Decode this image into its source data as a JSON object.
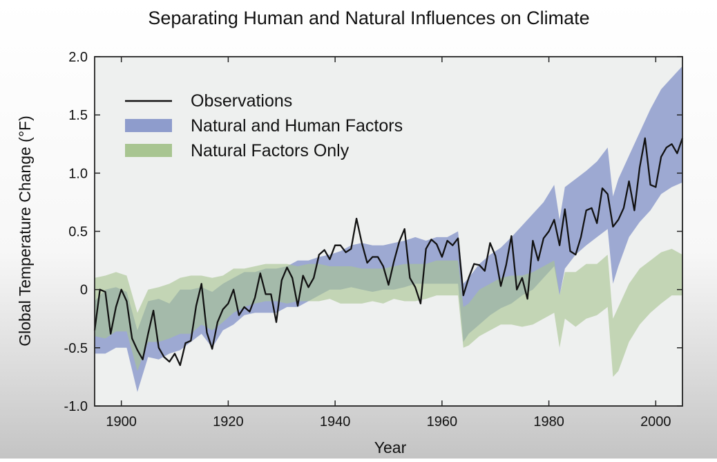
{
  "chart_data": {
    "type": "line",
    "title": "Separating Human and Natural Influences on Climate",
    "xlabel": "Year",
    "ylabel": "Global Temperature Change (°F)",
    "xlim": [
      1895,
      2005
    ],
    "ylim": [
      -1.0,
      2.0
    ],
    "xticks": [
      1900,
      1920,
      1940,
      1960,
      1980,
      2000
    ],
    "yticks": [
      -1.0,
      -0.5,
      0,
      0.5,
      1.0,
      1.5,
      2.0
    ],
    "ytick_labels": [
      "-1.0",
      "-0.5",
      "0",
      "0.5",
      "1.0",
      "1.5",
      "2.0"
    ],
    "legend_position": "top-left",
    "colors": {
      "observations": "#111111",
      "natural_and_human": "#8e9ccc",
      "natural_only": "#a8c591",
      "plot_background": "#eef0ef"
    },
    "series": [
      {
        "name": "Observations",
        "kind": "line",
        "x": [
          1895,
          1896,
          1897,
          1898,
          1899,
          1900,
          1901,
          1902,
          1903,
          1904,
          1905,
          1906,
          1907,
          1908,
          1909,
          1910,
          1911,
          1912,
          1913,
          1914,
          1915,
          1916,
          1917,
          1918,
          1919,
          1920,
          1921,
          1922,
          1923,
          1924,
          1925,
          1926,
          1927,
          1928,
          1929,
          1930,
          1931,
          1932,
          1933,
          1934,
          1935,
          1936,
          1937,
          1938,
          1939,
          1940,
          1941,
          1942,
          1943,
          1944,
          1945,
          1946,
          1947,
          1948,
          1949,
          1950,
          1951,
          1952,
          1953,
          1954,
          1955,
          1956,
          1957,
          1958,
          1959,
          1960,
          1961,
          1962,
          1963,
          1964,
          1965,
          1966,
          1967,
          1968,
          1969,
          1970,
          1971,
          1972,
          1973,
          1974,
          1975,
          1976,
          1977,
          1978,
          1979,
          1980,
          1981,
          1982,
          1983,
          1984,
          1985,
          1986,
          1987,
          1988,
          1989,
          1990,
          1991,
          1992,
          1993,
          1994,
          1995,
          1996,
          1997,
          1998,
          1999,
          2000,
          2001,
          2002,
          2003,
          2004,
          2005
        ],
        "y": [
          -0.35,
          0.0,
          -0.02,
          -0.38,
          -0.15,
          0.0,
          -0.1,
          -0.42,
          -0.52,
          -0.6,
          -0.38,
          -0.18,
          -0.5,
          -0.58,
          -0.62,
          -0.55,
          -0.65,
          -0.46,
          -0.44,
          -0.14,
          0.05,
          -0.37,
          -0.51,
          -0.28,
          -0.17,
          -0.12,
          0.0,
          -0.22,
          -0.15,
          -0.19,
          -0.07,
          0.14,
          -0.04,
          -0.04,
          -0.28,
          0.08,
          0.19,
          0.1,
          -0.14,
          0.12,
          0.02,
          0.1,
          0.3,
          0.34,
          0.26,
          0.38,
          0.38,
          0.32,
          0.35,
          0.61,
          0.4,
          0.23,
          0.28,
          0.28,
          0.2,
          0.04,
          0.24,
          0.41,
          0.52,
          0.1,
          0.02,
          -0.12,
          0.35,
          0.43,
          0.39,
          0.28,
          0.42,
          0.38,
          0.44,
          -0.05,
          0.1,
          0.22,
          0.21,
          0.16,
          0.4,
          0.29,
          0.03,
          0.21,
          0.46,
          0.0,
          0.1,
          -0.08,
          0.42,
          0.25,
          0.44,
          0.5,
          0.6,
          0.38,
          0.69,
          0.33,
          0.3,
          0.45,
          0.68,
          0.7,
          0.57,
          0.87,
          0.82,
          0.54,
          0.6,
          0.7,
          0.93,
          0.68,
          1.05,
          1.3,
          0.9,
          0.88,
          1.14,
          1.22,
          1.25,
          1.17,
          1.3
        ]
      },
      {
        "name": "Natural and Human Factors",
        "kind": "band",
        "x": [
          1895,
          1897,
          1899,
          1901,
          1903,
          1905,
          1907,
          1909,
          1911,
          1913,
          1915,
          1917,
          1919,
          1921,
          1923,
          1925,
          1927,
          1929,
          1931,
          1933,
          1935,
          1937,
          1939,
          1941,
          1943,
          1945,
          1947,
          1949,
          1951,
          1953,
          1955,
          1957,
          1959,
          1961,
          1963,
          1964,
          1965,
          1967,
          1969,
          1971,
          1973,
          1975,
          1977,
          1979,
          1981,
          1982,
          1983,
          1985,
          1987,
          1989,
          1991,
          1992,
          1993,
          1995,
          1997,
          1999,
          2001,
          2003,
          2005
        ],
        "lower": [
          -0.55,
          -0.55,
          -0.5,
          -0.5,
          -0.88,
          -0.58,
          -0.6,
          -0.55,
          -0.52,
          -0.45,
          -0.38,
          -0.5,
          -0.35,
          -0.3,
          -0.22,
          -0.2,
          -0.2,
          -0.2,
          -0.15,
          -0.15,
          -0.1,
          -0.05,
          0.0,
          0.0,
          0.02,
          0.0,
          -0.02,
          0.0,
          0.0,
          0.02,
          0.05,
          0.05,
          0.05,
          0.05,
          0.05,
          -0.45,
          -0.38,
          -0.3,
          -0.22,
          -0.16,
          -0.12,
          -0.05,
          0.0,
          0.1,
          0.2,
          -0.05,
          0.18,
          0.3,
          0.38,
          0.45,
          0.52,
          0.05,
          0.2,
          0.45,
          0.58,
          0.68,
          0.82,
          0.88,
          0.92
        ],
        "upper": [
          -0.1,
          0.0,
          0.02,
          -0.02,
          -0.35,
          -0.1,
          -0.08,
          -0.12,
          0.0,
          0.0,
          0.02,
          -0.02,
          0.05,
          0.1,
          0.15,
          0.15,
          0.18,
          0.18,
          0.2,
          0.25,
          0.25,
          0.28,
          0.3,
          0.33,
          0.38,
          0.4,
          0.38,
          0.38,
          0.4,
          0.42,
          0.45,
          0.42,
          0.45,
          0.45,
          0.5,
          0.05,
          0.1,
          0.22,
          0.3,
          0.36,
          0.45,
          0.55,
          0.65,
          0.75,
          0.9,
          0.6,
          0.88,
          0.95,
          1.02,
          1.1,
          1.22,
          0.8,
          0.95,
          1.15,
          1.35,
          1.55,
          1.72,
          1.82,
          1.92
        ]
      },
      {
        "name": "Natural Factors Only",
        "kind": "band",
        "x": [
          1895,
          1897,
          1899,
          1901,
          1903,
          1905,
          1907,
          1909,
          1911,
          1913,
          1915,
          1917,
          1919,
          1921,
          1923,
          1925,
          1927,
          1929,
          1931,
          1933,
          1935,
          1937,
          1939,
          1941,
          1943,
          1945,
          1947,
          1949,
          1951,
          1953,
          1955,
          1957,
          1959,
          1961,
          1963,
          1964,
          1965,
          1967,
          1969,
          1971,
          1973,
          1975,
          1977,
          1979,
          1981,
          1982,
          1983,
          1985,
          1987,
          1989,
          1991,
          1992,
          1993,
          1995,
          1997,
          1999,
          2001,
          2003,
          2005
        ],
        "lower": [
          -0.4,
          -0.42,
          -0.36,
          -0.36,
          -0.7,
          -0.45,
          -0.45,
          -0.42,
          -0.38,
          -0.38,
          -0.3,
          -0.35,
          -0.28,
          -0.2,
          -0.15,
          -0.12,
          -0.1,
          -0.1,
          -0.12,
          -0.1,
          -0.1,
          -0.1,
          -0.08,
          -0.12,
          -0.12,
          -0.12,
          -0.1,
          -0.12,
          -0.08,
          -0.1,
          -0.1,
          -0.08,
          -0.05,
          -0.05,
          -0.05,
          -0.5,
          -0.48,
          -0.4,
          -0.35,
          -0.3,
          -0.3,
          -0.32,
          -0.3,
          -0.25,
          -0.2,
          -0.5,
          -0.25,
          -0.32,
          -0.25,
          -0.22,
          -0.15,
          -0.75,
          -0.7,
          -0.45,
          -0.3,
          -0.2,
          -0.12,
          -0.05,
          -0.05
        ],
        "upper": [
          0.1,
          0.12,
          0.15,
          0.12,
          -0.2,
          0.0,
          0.02,
          0.05,
          0.1,
          0.12,
          0.12,
          0.1,
          0.12,
          0.18,
          0.18,
          0.2,
          0.22,
          0.22,
          0.22,
          0.2,
          0.22,
          0.22,
          0.2,
          0.2,
          0.2,
          0.18,
          0.18,
          0.18,
          0.2,
          0.22,
          0.22,
          0.22,
          0.25,
          0.25,
          0.25,
          -0.15,
          -0.12,
          0.0,
          0.05,
          0.1,
          0.12,
          0.12,
          0.15,
          0.2,
          0.25,
          -0.05,
          0.15,
          0.15,
          0.22,
          0.22,
          0.3,
          -0.25,
          -0.15,
          0.05,
          0.18,
          0.25,
          0.32,
          0.35,
          0.3
        ]
      }
    ],
    "legend": [
      {
        "label": "Observations",
        "swatch": "line"
      },
      {
        "label": "Natural and Human Factors",
        "swatch": "band"
      },
      {
        "label": "Natural Factors Only",
        "swatch": "band"
      }
    ]
  }
}
